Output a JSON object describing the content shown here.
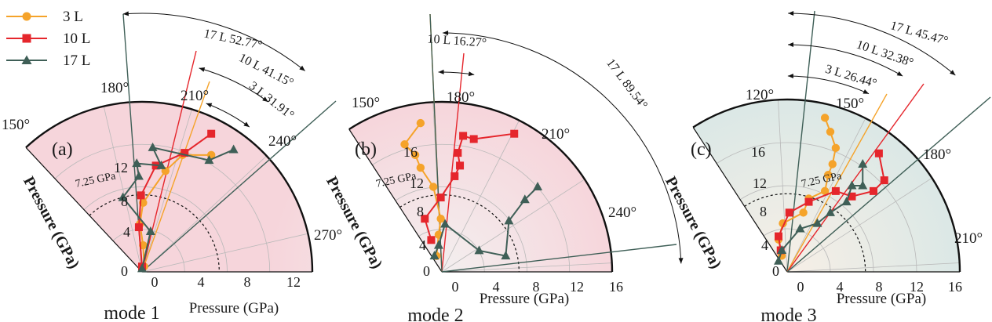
{
  "legend": [
    {
      "name": "3 L",
      "color": "#f5a32a",
      "marker": "circle"
    },
    {
      "name": "10 L",
      "color": "#e5262c",
      "marker": "square"
    },
    {
      "name": "17 L",
      "color": "#3f5f57",
      "marker": "triangle"
    }
  ],
  "chart_data": [
    {
      "type": "scatter",
      "panel": "(a)",
      "caption": "mode 1",
      "xlabel": "Pressure (GPa)",
      "ylabel": "Pressure (GPa)",
      "radial_ticks": [
        "0",
        "4",
        "8",
        "12"
      ],
      "r_max": 16,
      "angle_ticks": [
        "150°",
        "180°",
        "210°",
        "240°",
        "270°"
      ],
      "threshold_label": "7.25 GPa",
      "threshold_value": 7.25,
      "fill": "pink",
      "angles": [
        {
          "series": "17 L",
          "value": 52.77,
          "label": "17 L  52.77°"
        },
        {
          "series": "10 L",
          "value": 41.15,
          "label": "10 L  41.15°"
        },
        {
          "series": "3 L",
          "value": 31.91,
          "label": "3 L  31.91°"
        }
      ],
      "series": [
        {
          "name": "3 L",
          "points": [
            [
              0.2,
              0.5
            ],
            [
              0.1,
              2.5
            ],
            [
              -0.2,
              4.5
            ],
            [
              0.1,
              6.5
            ],
            [
              2.2,
              9.5
            ],
            [
              3.8,
              11.0
            ],
            [
              6.5,
              11.0
            ]
          ]
        },
        {
          "name": "10 L",
          "points": [
            [
              0,
              0.5
            ],
            [
              -0.3,
              4.2
            ],
            [
              -0.1,
              7.2
            ],
            [
              1.3,
              10.0
            ],
            [
              4.0,
              11.2
            ],
            [
              6.5,
              13.0
            ]
          ]
        },
        {
          "name": "17 L",
          "points": [
            [
              0,
              0.3
            ],
            [
              0.8,
              3.8
            ],
            [
              -1.8,
              7.0
            ],
            [
              -0.3,
              9.0
            ],
            [
              -0.5,
              10.2
            ],
            [
              1.8,
              10.0
            ],
            [
              1.0,
              11.7
            ],
            [
              6.3,
              10.5
            ],
            [
              8.6,
              11.5
            ]
          ]
        }
      ]
    },
    {
      "type": "scatter",
      "panel": "(b)",
      "caption": "mode 2",
      "xlabel": "Pressure (GPa)",
      "ylabel": "Pressure (GPa)",
      "radial_ticks": [
        "0",
        "4",
        "8",
        "12",
        "16"
      ],
      "r_max": 16,
      "angle_ticks": [
        "150°",
        "180°",
        "210°",
        "240°"
      ],
      "threshold_label": "7.25 GPa",
      "threshold_value": 7.25,
      "fill": "pink",
      "angles": [
        {
          "series": "10 L",
          "value": 16.27,
          "label": "10 L  16.27°"
        },
        {
          "series": "17 L",
          "value": 89.54,
          "label": "17 L  89.54°"
        }
      ],
      "series": [
        {
          "name": "3 L",
          "points": [
            [
              -0.5,
              1.5
            ],
            [
              -0.3,
              3.5
            ],
            [
              -0.1,
              5.0
            ],
            [
              -0.8,
              8.0
            ],
            [
              -2.0,
              9.8
            ],
            [
              -2.5,
              11.0
            ],
            [
              -3.5,
              12.0
            ],
            [
              -2.0,
              14.0
            ]
          ]
        },
        {
          "name": "10 L",
          "points": [
            [
              -1.0,
              3.0
            ],
            [
              -1.6,
              5.0
            ],
            [
              -0.1,
              7.0
            ],
            [
              1.2,
              9.0
            ],
            [
              1.7,
              10.0
            ],
            [
              1.5,
              11.2
            ],
            [
              2.0,
              12.8
            ],
            [
              3.0,
              12.5
            ],
            [
              6.8,
              13.0
            ]
          ]
        },
        {
          "name": "17 L",
          "points": [
            [
              -0.7,
              1.5
            ],
            [
              -0.3,
              2.5
            ],
            [
              0.3,
              4.5
            ],
            [
              3.5,
              2.0
            ],
            [
              6.0,
              1.5
            ],
            [
              6.3,
              4.8
            ],
            [
              7.8,
              6.8
            ],
            [
              9.0,
              8.0
            ]
          ]
        }
      ]
    },
    {
      "type": "scatter",
      "panel": "(c)",
      "caption": "mode 3",
      "xlabel": "Pressure (GPa)",
      "ylabel": "Pressure (GPa)",
      "radial_ticks": [
        "0",
        "4",
        "8",
        "12",
        "16"
      ],
      "r_max": 16,
      "angle_ticks": [
        "120°",
        "150°",
        "180°",
        "210°"
      ],
      "threshold_label": "7.25 GPa",
      "threshold_value": 7.25,
      "fill": "teal",
      "angles": [
        {
          "series": "17 L",
          "value": 45.47,
          "label": "17 L  45.47°"
        },
        {
          "series": "10 L",
          "value": 32.38,
          "label": "10 L  32.38°"
        },
        {
          "series": "3 L",
          "value": 26.44,
          "label": "3 L  26.44°"
        }
      ],
      "series": [
        {
          "name": "3 L",
          "points": [
            [
              -0.5,
              1.5
            ],
            [
              -0.8,
              3.0
            ],
            [
              -0.4,
              4.5
            ],
            [
              1.5,
              5.5
            ],
            [
              2.0,
              6.8
            ],
            [
              3.5,
              7.5
            ],
            [
              3.8,
              9.0
            ],
            [
              4.2,
              10.0
            ],
            [
              4.5,
              11.5
            ],
            [
              4.0,
              13.0
            ],
            [
              3.5,
              14.3
            ]
          ]
        },
        {
          "name": "10 L",
          "points": [
            [
              -0.6,
              2.0
            ],
            [
              -0.8,
              3.3
            ],
            [
              0.2,
              5.5
            ],
            [
              2.0,
              6.5
            ],
            [
              4.5,
              7.5
            ],
            [
              6.0,
              7.0
            ],
            [
              8.0,
              7.5
            ],
            [
              9.0,
              8.5
            ],
            [
              8.5,
              11.0
            ]
          ]
        },
        {
          "name": "17 L",
          "points": [
            [
              -0.8,
              1.0
            ],
            [
              -0.5,
              2.0
            ],
            [
              1.2,
              4.0
            ],
            [
              2.8,
              4.5
            ],
            [
              4.0,
              5.5
            ],
            [
              5.5,
              6.5
            ],
            [
              6.0,
              8.0
            ],
            [
              7.0,
              8.0
            ],
            [
              7.0,
              10.0
            ]
          ]
        }
      ]
    }
  ]
}
